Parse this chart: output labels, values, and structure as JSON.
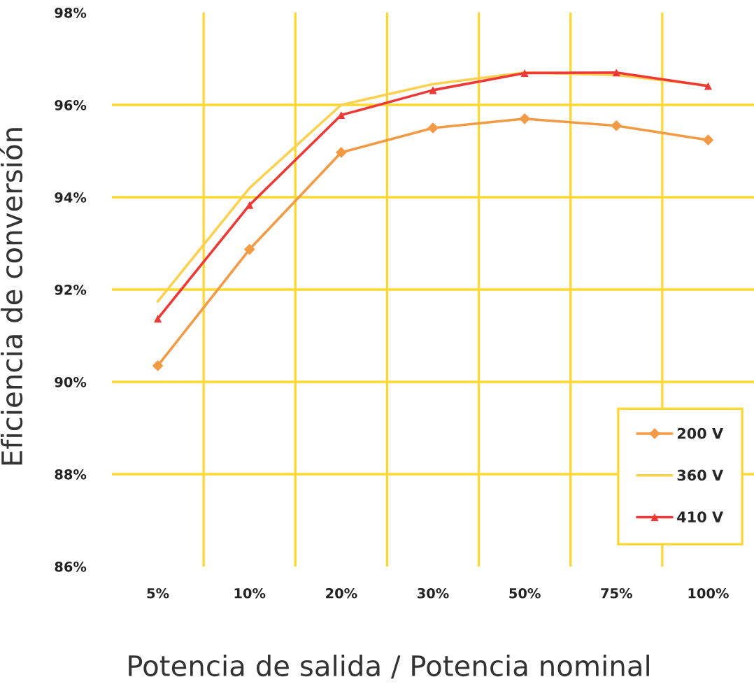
{
  "chart_data": {
    "type": "line",
    "xlabel": "Potencia de salida / Potencia nominal",
    "ylabel": "Eficiencia de conversión",
    "categories": [
      "5%",
      "10%",
      "20%",
      "30%",
      "50%",
      "75%",
      "100%"
    ],
    "series": [
      {
        "name": "200 V",
        "color": "#f39a45",
        "marker": "diamond",
        "values": [
          90.35,
          92.87,
          94.97,
          95.5,
          95.7,
          95.55,
          95.24
        ]
      },
      {
        "name": "360 V",
        "color": "#fdd150",
        "marker": "none",
        "values": [
          91.74,
          94.2,
          96.0,
          96.45,
          96.7,
          96.65,
          96.42
        ]
      },
      {
        "name": "410 V",
        "color": "#ee3a36",
        "marker": "triangle",
        "values": [
          91.37,
          93.83,
          95.78,
          96.32,
          96.69,
          96.7,
          96.41
        ]
      }
    ],
    "ylim": [
      86,
      98
    ],
    "yticks": [
      {
        "value": 86,
        "label": "86%"
      },
      {
        "value": 88,
        "label": "88%"
      },
      {
        "value": 90,
        "label": "90%"
      },
      {
        "value": 92,
        "label": "92%"
      },
      {
        "value": 94,
        "label": "94%"
      },
      {
        "value": 96,
        "label": "96%"
      },
      {
        "value": 98,
        "label": "98%"
      }
    ],
    "grid": true,
    "legend": "bottom right",
    "line_style": "solid"
  }
}
